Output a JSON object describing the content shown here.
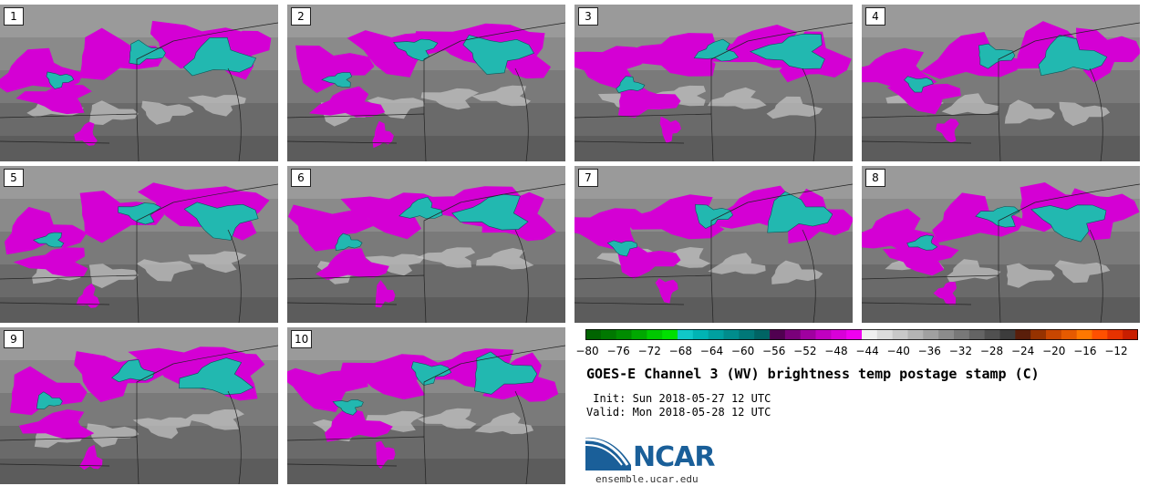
{
  "panels": [
    {
      "label": "1"
    },
    {
      "label": "2"
    },
    {
      "label": "3"
    },
    {
      "label": "4"
    },
    {
      "label": "5"
    },
    {
      "label": "6"
    },
    {
      "label": "7"
    },
    {
      "label": "8"
    },
    {
      "label": "9"
    },
    {
      "label": "10"
    }
  ],
  "colorbar": {
    "ticks": [
      "−80",
      "−76",
      "−72",
      "−68",
      "−64",
      "−60",
      "−56",
      "−52",
      "−48",
      "−44",
      "−40",
      "−36",
      "−32",
      "−28",
      "−24",
      "−20",
      "−16",
      "−12"
    ],
    "colors": [
      "#006400",
      "#007800",
      "#008c00",
      "#00a800",
      "#00c800",
      "#00e000",
      "#10c8c8",
      "#00b4b4",
      "#00a0a0",
      "#008c8c",
      "#007878",
      "#006464",
      "#500050",
      "#7a007a",
      "#a000a0",
      "#c000c0",
      "#d800d8",
      "#f000f0",
      "#f0f0f0",
      "#dcdcdc",
      "#c8c8c8",
      "#b4b4b4",
      "#a0a0a0",
      "#8c8c8c",
      "#787878",
      "#646464",
      "#505050",
      "#3c3c3c",
      "#5a1e0a",
      "#963200",
      "#c84600",
      "#e65a00",
      "#ff7800",
      "#ff5000",
      "#e63200",
      "#c81e00"
    ]
  },
  "title": "GOES-E Channel 3 (WV) brightness temp postage stamp (C)",
  "init": " Init: Sun 2018-05-27 12 UTC",
  "valid": "Valid: Mon 2018-05-28 12 UTC",
  "logo": {
    "text": "NCAR",
    "url": "ensemble.ucar.edu",
    "brand_color": "#1a5f99"
  }
}
